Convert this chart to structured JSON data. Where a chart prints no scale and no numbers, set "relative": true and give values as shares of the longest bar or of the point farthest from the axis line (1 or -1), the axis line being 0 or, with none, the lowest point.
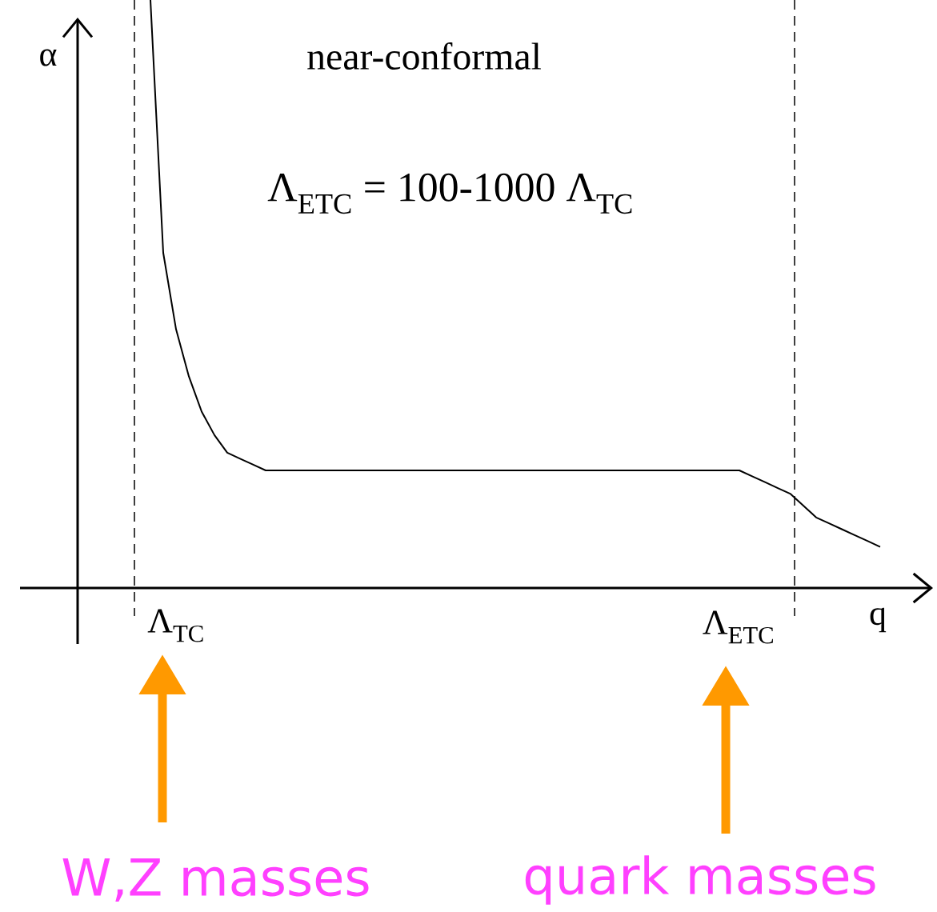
{
  "chart_data": {
    "type": "line",
    "relative": true,
    "xlabel": "q",
    "ylabel": "α",
    "categories": [
      null,
      null,
      null,
      null,
      null,
      null,
      null,
      null,
      null,
      null,
      null,
      null,
      null,
      null,
      null,
      null,
      null,
      null,
      null,
      null,
      null,
      null,
      null,
      null,
      null,
      null,
      null,
      null,
      null,
      null,
      null,
      null,
      null,
      null,
      null,
      null,
      null,
      null,
      null,
      null,
      null,
      null,
      null,
      null,
      null,
      null,
      null,
      null,
      null,
      null,
      null,
      null,
      null,
      null,
      null,
      null,
      null,
      null
    ],
    "series": [
      {
        "color": "#000000",
        "values": [
          1.0,
          0.57,
          0.44,
          0.36,
          0.3,
          0.26,
          0.23,
          0.22,
          0.21,
          0.2,
          0.2,
          0.2,
          0.2,
          0.2,
          0.2,
          0.2,
          0.2,
          0.2,
          0.2,
          0.2,
          0.2,
          0.2,
          0.2,
          0.2,
          0.2,
          0.2,
          0.2,
          0.2,
          0.2,
          0.2,
          0.2,
          0.2,
          0.2,
          0.2,
          0.2,
          0.2,
          0.2,
          0.2,
          0.2,
          0.2,
          0.2,
          0.2,
          0.2,
          0.2,
          0.2,
          0.2,
          0.2,
          0.19,
          0.18,
          0.17,
          0.16,
          0.14,
          0.12,
          0.11,
          0.1,
          0.09,
          0.08,
          0.07
        ]
      }
    ],
    "annotations": [
      "near-conformal",
      "Λ$_{ETC}$ = 100-1000 Λ$_{TC}$",
      "W,Z masses",
      "quark masses",
      "Λ$_{TC}$",
      "Λ$_{ETC}$"
    ],
    "marker": "none",
    "line_style": "solid"
  }
}
